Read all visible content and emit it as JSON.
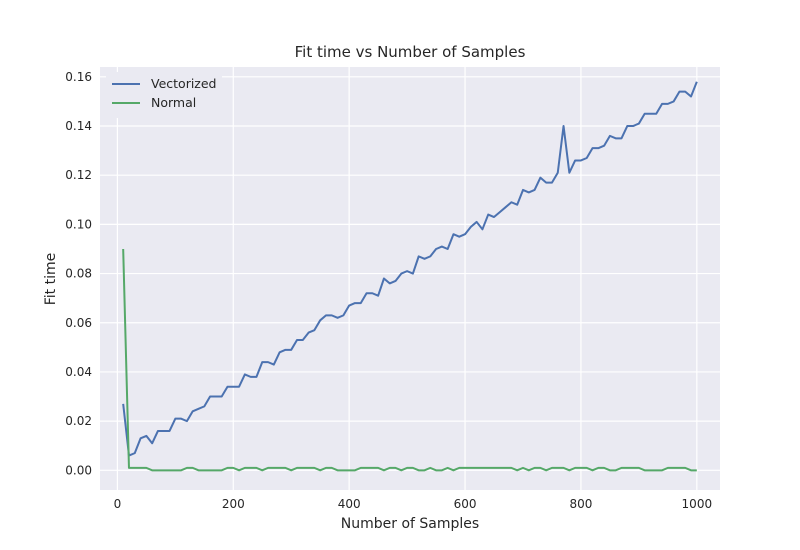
{
  "chart_data": {
    "type": "line",
    "title": "Fit time vs Number of Samples",
    "xlabel": "Number of Samples",
    "ylabel": "Fit time",
    "xlim": [
      -30,
      1040
    ],
    "ylim": [
      -0.008,
      0.164
    ],
    "xticks": [
      0,
      200,
      400,
      600,
      800,
      1000
    ],
    "yticks": [
      0.0,
      0.02,
      0.04,
      0.06,
      0.08,
      0.1,
      0.12,
      0.14,
      0.16
    ],
    "grid": true,
    "legend_position": "top-left",
    "x": [
      10,
      20,
      30,
      40,
      50,
      60,
      70,
      80,
      90,
      100,
      110,
      120,
      130,
      140,
      150,
      160,
      170,
      180,
      190,
      200,
      210,
      220,
      230,
      240,
      250,
      260,
      270,
      280,
      290,
      300,
      310,
      320,
      330,
      340,
      350,
      360,
      370,
      380,
      390,
      400,
      410,
      420,
      430,
      440,
      450,
      460,
      470,
      480,
      490,
      500,
      510,
      520,
      530,
      540,
      550,
      560,
      570,
      580,
      590,
      600,
      610,
      620,
      630,
      640,
      650,
      660,
      670,
      680,
      690,
      700,
      710,
      720,
      730,
      740,
      750,
      760,
      770,
      780,
      790,
      800,
      810,
      820,
      830,
      840,
      850,
      860,
      870,
      880,
      890,
      900,
      910,
      920,
      930,
      940,
      950,
      960,
      970,
      980,
      990,
      1000
    ],
    "series": [
      {
        "name": "Vectorized",
        "color": "#4c72b0",
        "values": [
          0.027,
          0.006,
          0.007,
          0.013,
          0.014,
          0.011,
          0.016,
          0.016,
          0.016,
          0.021,
          0.021,
          0.02,
          0.024,
          0.025,
          0.026,
          0.03,
          0.03,
          0.03,
          0.034,
          0.034,
          0.034,
          0.039,
          0.038,
          0.038,
          0.044,
          0.044,
          0.043,
          0.048,
          0.049,
          0.049,
          0.053,
          0.053,
          0.056,
          0.057,
          0.061,
          0.063,
          0.063,
          0.062,
          0.063,
          0.067,
          0.068,
          0.068,
          0.072,
          0.072,
          0.071,
          0.078,
          0.076,
          0.077,
          0.08,
          0.081,
          0.08,
          0.087,
          0.086,
          0.087,
          0.09,
          0.091,
          0.09,
          0.096,
          0.095,
          0.096,
          0.099,
          0.101,
          0.098,
          0.104,
          0.103,
          0.105,
          0.107,
          0.109,
          0.108,
          0.114,
          0.113,
          0.114,
          0.119,
          0.117,
          0.117,
          0.121,
          0.14,
          0.121,
          0.126,
          0.126,
          0.127,
          0.131,
          0.131,
          0.132,
          0.136,
          0.135,
          0.135,
          0.14,
          0.14,
          0.141,
          0.145,
          0.145,
          0.145,
          0.149,
          0.149,
          0.15,
          0.154,
          0.154,
          0.152,
          0.158
        ]
      },
      {
        "name": "Normal",
        "color": "#55a868",
        "values": [
          0.09,
          0.001,
          0.001,
          0.001,
          0.001,
          0.0,
          0.0,
          0.0,
          0.0,
          0.0,
          0.0,
          0.001,
          0.001,
          0.0,
          0.0,
          0.0,
          0.0,
          0.0,
          0.001,
          0.001,
          0.0,
          0.001,
          0.001,
          0.001,
          0.0,
          0.001,
          0.001,
          0.001,
          0.001,
          0.0,
          0.001,
          0.001,
          0.001,
          0.001,
          0.0,
          0.001,
          0.001,
          0.0,
          0.0,
          0.0,
          0.0,
          0.001,
          0.001,
          0.001,
          0.001,
          0.0,
          0.001,
          0.001,
          0.0,
          0.001,
          0.001,
          0.0,
          0.0,
          0.001,
          0.0,
          0.0,
          0.001,
          0.0,
          0.001,
          0.001,
          0.001,
          0.001,
          0.001,
          0.001,
          0.001,
          0.001,
          0.001,
          0.001,
          0.0,
          0.001,
          0.0,
          0.001,
          0.001,
          0.0,
          0.001,
          0.001,
          0.001,
          0.0,
          0.001,
          0.001,
          0.001,
          0.0,
          0.001,
          0.001,
          0.0,
          0.0,
          0.001,
          0.001,
          0.001,
          0.001,
          0.0,
          0.0,
          0.0,
          0.0,
          0.001,
          0.001,
          0.001,
          0.001,
          0.0,
          0.0
        ]
      }
    ]
  }
}
